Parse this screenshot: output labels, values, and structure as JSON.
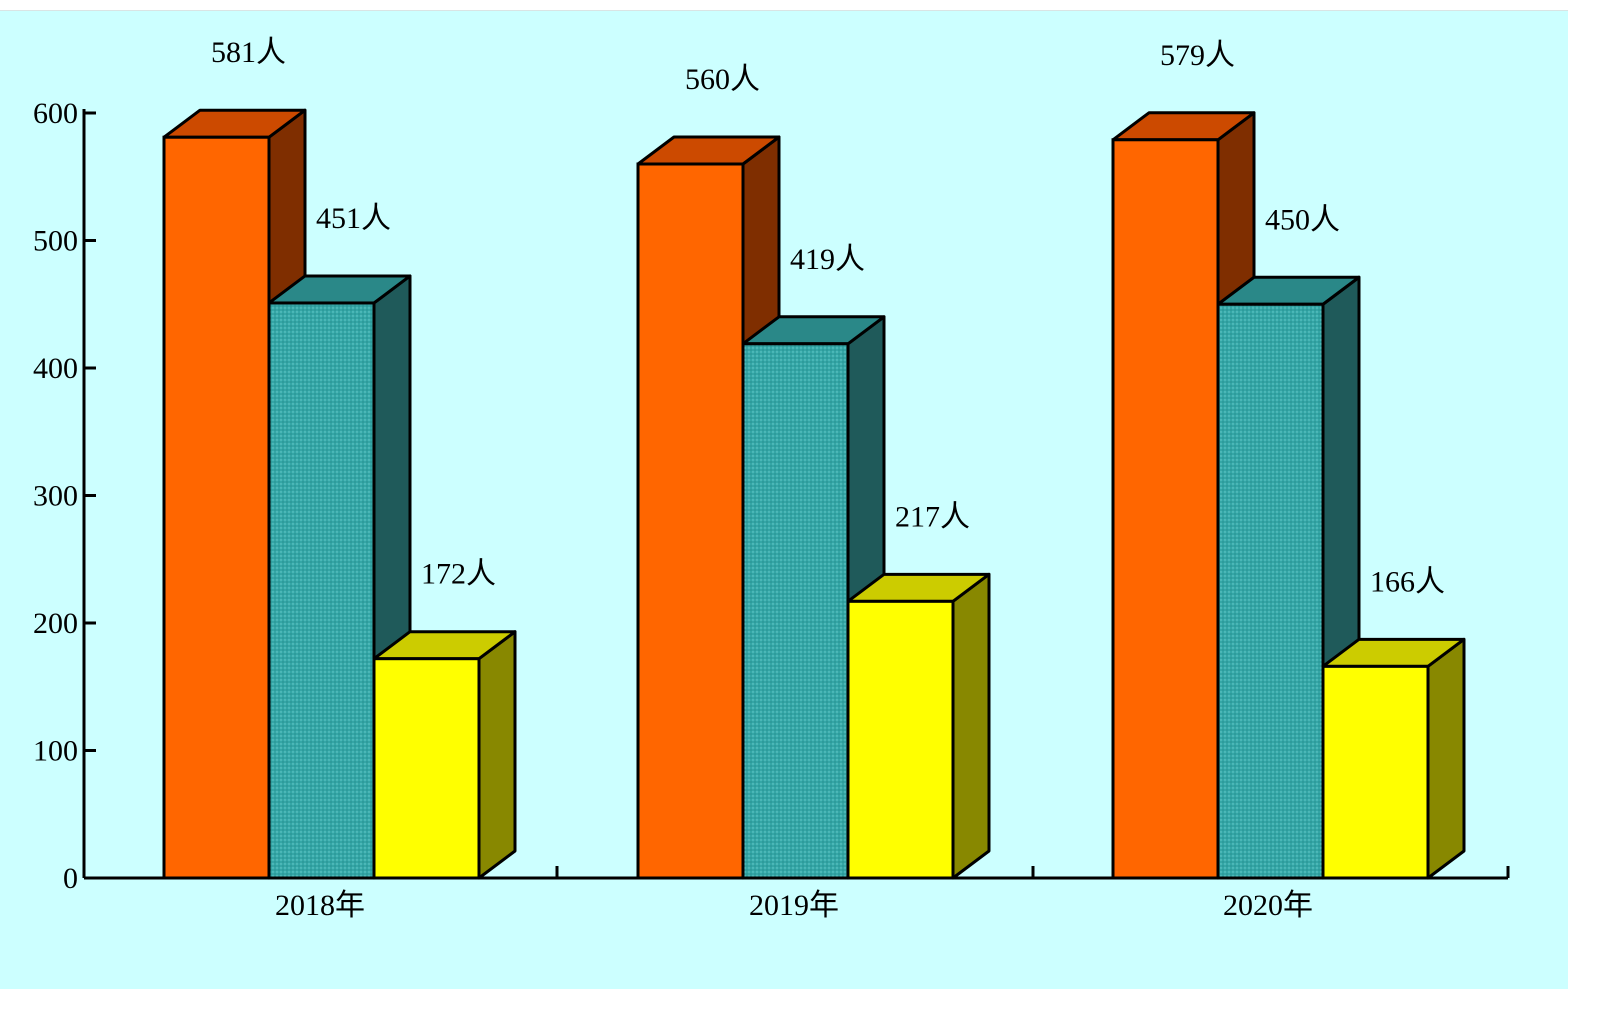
{
  "chart_data": {
    "type": "bar",
    "title": "",
    "xlabel": "",
    "ylabel": "",
    "categories": [
      "2018年",
      "2019年",
      "2020年"
    ],
    "ylim": [
      0,
      600
    ],
    "yticks": [
      0,
      100,
      200,
      300,
      400,
      500,
      600
    ],
    "grid": false,
    "legend": "none",
    "series": [
      {
        "values": [
          581,
          560,
          579
        ],
        "labels": [
          "581人",
          "560人",
          "579人"
        ],
        "color": "#ff6600"
      },
      {
        "values": [
          451,
          419,
          450
        ],
        "labels": [
          "451人",
          "419人",
          "450人"
        ],
        "color": "#33a3a3"
      },
      {
        "values": [
          172,
          217,
          166
        ],
        "labels": [
          "172人",
          "217人",
          "166人"
        ],
        "color": "#ffff00"
      }
    ],
    "background": "#ccffff"
  }
}
